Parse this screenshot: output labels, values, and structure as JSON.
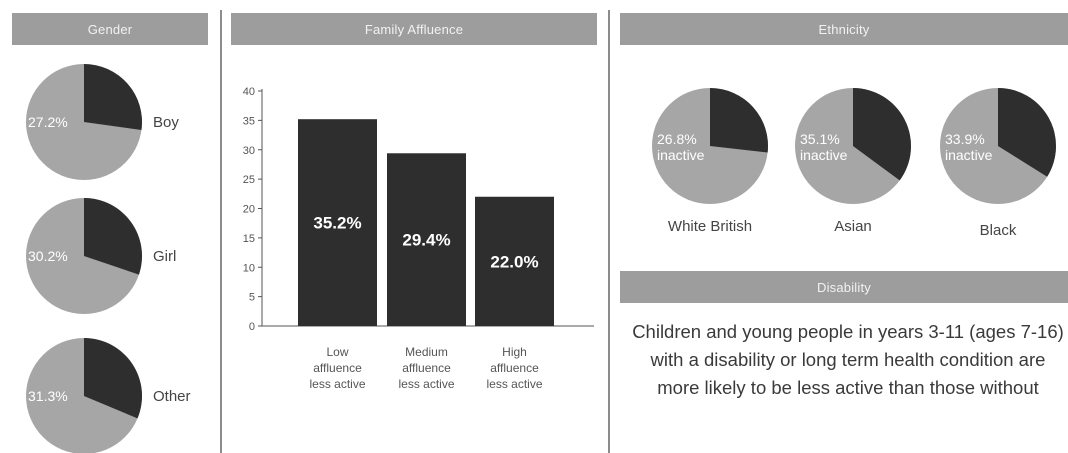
{
  "headers": {
    "gender": "Gender",
    "family_affluence": "Family Affluence",
    "ethnicity": "Ethnicity",
    "disability": "Disability"
  },
  "colors": {
    "header_bg": "#9d9d9d",
    "dark": "#2e2e2e",
    "light": "#a6a6a6",
    "text": "#3a3a3a"
  },
  "disability_text": "Children and young people in years 3-11 (ages 7-16) with a disability or long term health condition are more likely to be less active than those without",
  "chart_data": [
    {
      "type": "pie",
      "group": "Gender",
      "slices": [
        {
          "label": "Boy",
          "value_label": "27.2%",
          "value": 27.2
        },
        {
          "label": "Girl",
          "value_label": "30.2%",
          "value": 30.2
        },
        {
          "label": "Other",
          "value_label": "31.3%",
          "value": 31.3
        }
      ]
    },
    {
      "type": "bar",
      "group": "Family Affluence",
      "categories": [
        "Low affluence less active",
        "Medium affluence less active",
        "High affluence less active"
      ],
      "category_lines": [
        [
          "Low",
          "affluence",
          "less active"
        ],
        [
          "Medium",
          "affluence",
          "less active"
        ],
        [
          "High",
          "affluence",
          "less active"
        ]
      ],
      "values": [
        35.2,
        29.4,
        22.0
      ],
      "value_labels": [
        "35.2%",
        "29.4%",
        "22.0%"
      ],
      "ylim": [
        0,
        40
      ],
      "yticks": [
        0,
        5,
        10,
        15,
        20,
        25,
        30,
        35,
        40
      ]
    },
    {
      "type": "pie",
      "group": "Ethnicity",
      "slices": [
        {
          "label": "White British",
          "value_label": "26.8%",
          "sublabel": "inactive",
          "value": 26.8
        },
        {
          "label": "Asian",
          "value_label": "35.1%",
          "sublabel": "inactive",
          "value": 35.1
        },
        {
          "label": "Black",
          "value_label": "33.9%",
          "sublabel": "inactive",
          "value": 33.9
        }
      ]
    }
  ]
}
